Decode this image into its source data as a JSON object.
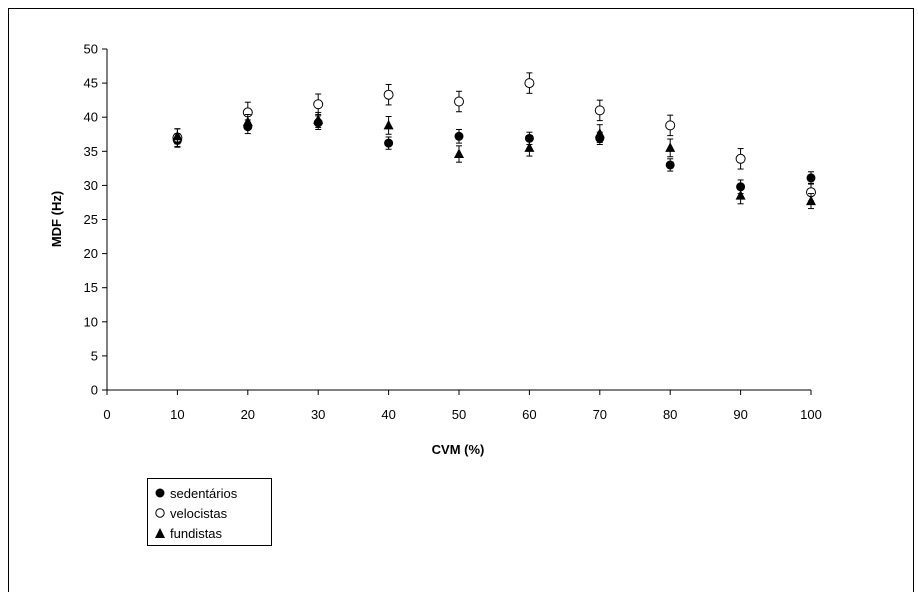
{
  "chart_data": {
    "type": "scatter",
    "title": "",
    "xlabel": "CVM (%)",
    "ylabel": "MDF  (Hz)",
    "xlim": [
      0,
      100
    ],
    "ylim": [
      0,
      50
    ],
    "xticks": [
      0,
      10,
      20,
      30,
      40,
      50,
      60,
      70,
      80,
      90,
      100
    ],
    "yticks": [
      0,
      5,
      10,
      15,
      20,
      25,
      30,
      35,
      40,
      45,
      50
    ],
    "grid": false,
    "legend_position": "bottom-left",
    "x": [
      10,
      20,
      30,
      40,
      50,
      60,
      70,
      80,
      90,
      100
    ],
    "series": [
      {
        "name": "sedentários",
        "marker": "filled-circle",
        "color": "#000000",
        "values": [
          36.6,
          38.6,
          39.2,
          36.2,
          37.2,
          36.9,
          36.9,
          33.0,
          29.8,
          31.1
        ],
        "errors": [
          1.0,
          1.0,
          1.0,
          0.9,
          1.0,
          0.9,
          0.9,
          0.9,
          1.0,
          0.9
        ]
      },
      {
        "name": "velocistas",
        "marker": "open-circle",
        "color": "#000000",
        "values": [
          37.0,
          40.7,
          41.9,
          43.3,
          42.3,
          45.0,
          41.0,
          38.8,
          33.9,
          29.0
        ],
        "errors": [
          1.3,
          1.5,
          1.5,
          1.5,
          1.5,
          1.5,
          1.5,
          1.5,
          1.5,
          1.3
        ]
      },
      {
        "name": "fundistas",
        "marker": "filled-triangle",
        "color": "#000000",
        "values": [
          37.2,
          39.3,
          39.6,
          38.8,
          34.6,
          35.5,
          37.6,
          35.5,
          28.5,
          27.7
        ],
        "errors": [
          1.1,
          1.1,
          1.1,
          1.3,
          1.2,
          1.2,
          1.3,
          1.3,
          1.2,
          1.1
        ]
      }
    ]
  }
}
